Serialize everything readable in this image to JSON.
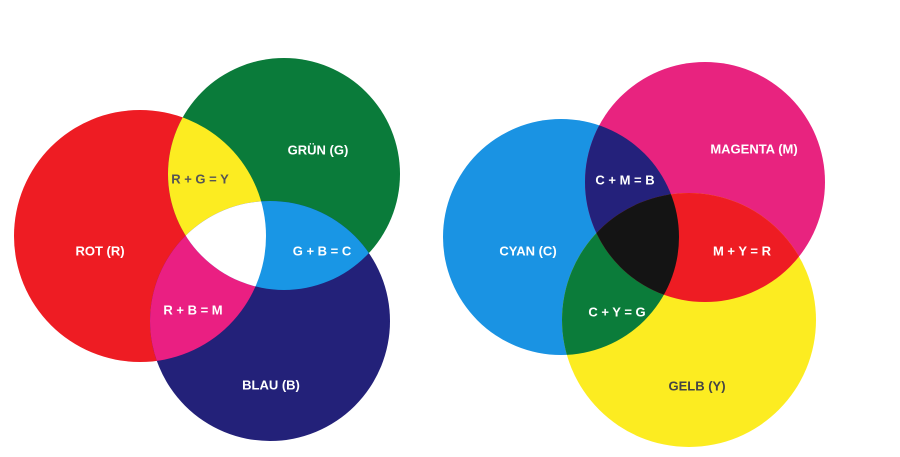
{
  "additive": {
    "colors": {
      "red": "#ee1c23",
      "green": "#0a7b3a",
      "blue": "#232179",
      "yellow": "#fcec21",
      "cyan": "#1996e5",
      "magenta": "#ea1f82",
      "white": "#ffffff"
    },
    "labels": {
      "red": "ROT (R)",
      "green": "GRÜN (G)",
      "blue": "BLAU (B)",
      "red_green": "R + G = Y",
      "green_blue": "G + B = C",
      "red_blue": "R + B = M"
    }
  },
  "subtractive": {
    "colors": {
      "cyan": "#1a93e3",
      "magenta": "#e8237f",
      "yellow": "#fcec21",
      "blue": "#24217b",
      "red": "#ee1c23",
      "green": "#0b7c3a",
      "black": "#141414"
    },
    "labels": {
      "cyan": "CYAN (C)",
      "magenta": "MAGENTA (M)",
      "yellow": "GELB (Y)",
      "cyan_magenta": "C + M = B",
      "magenta_yellow": "M + Y = R",
      "cyan_yellow": "C + Y = G"
    }
  }
}
